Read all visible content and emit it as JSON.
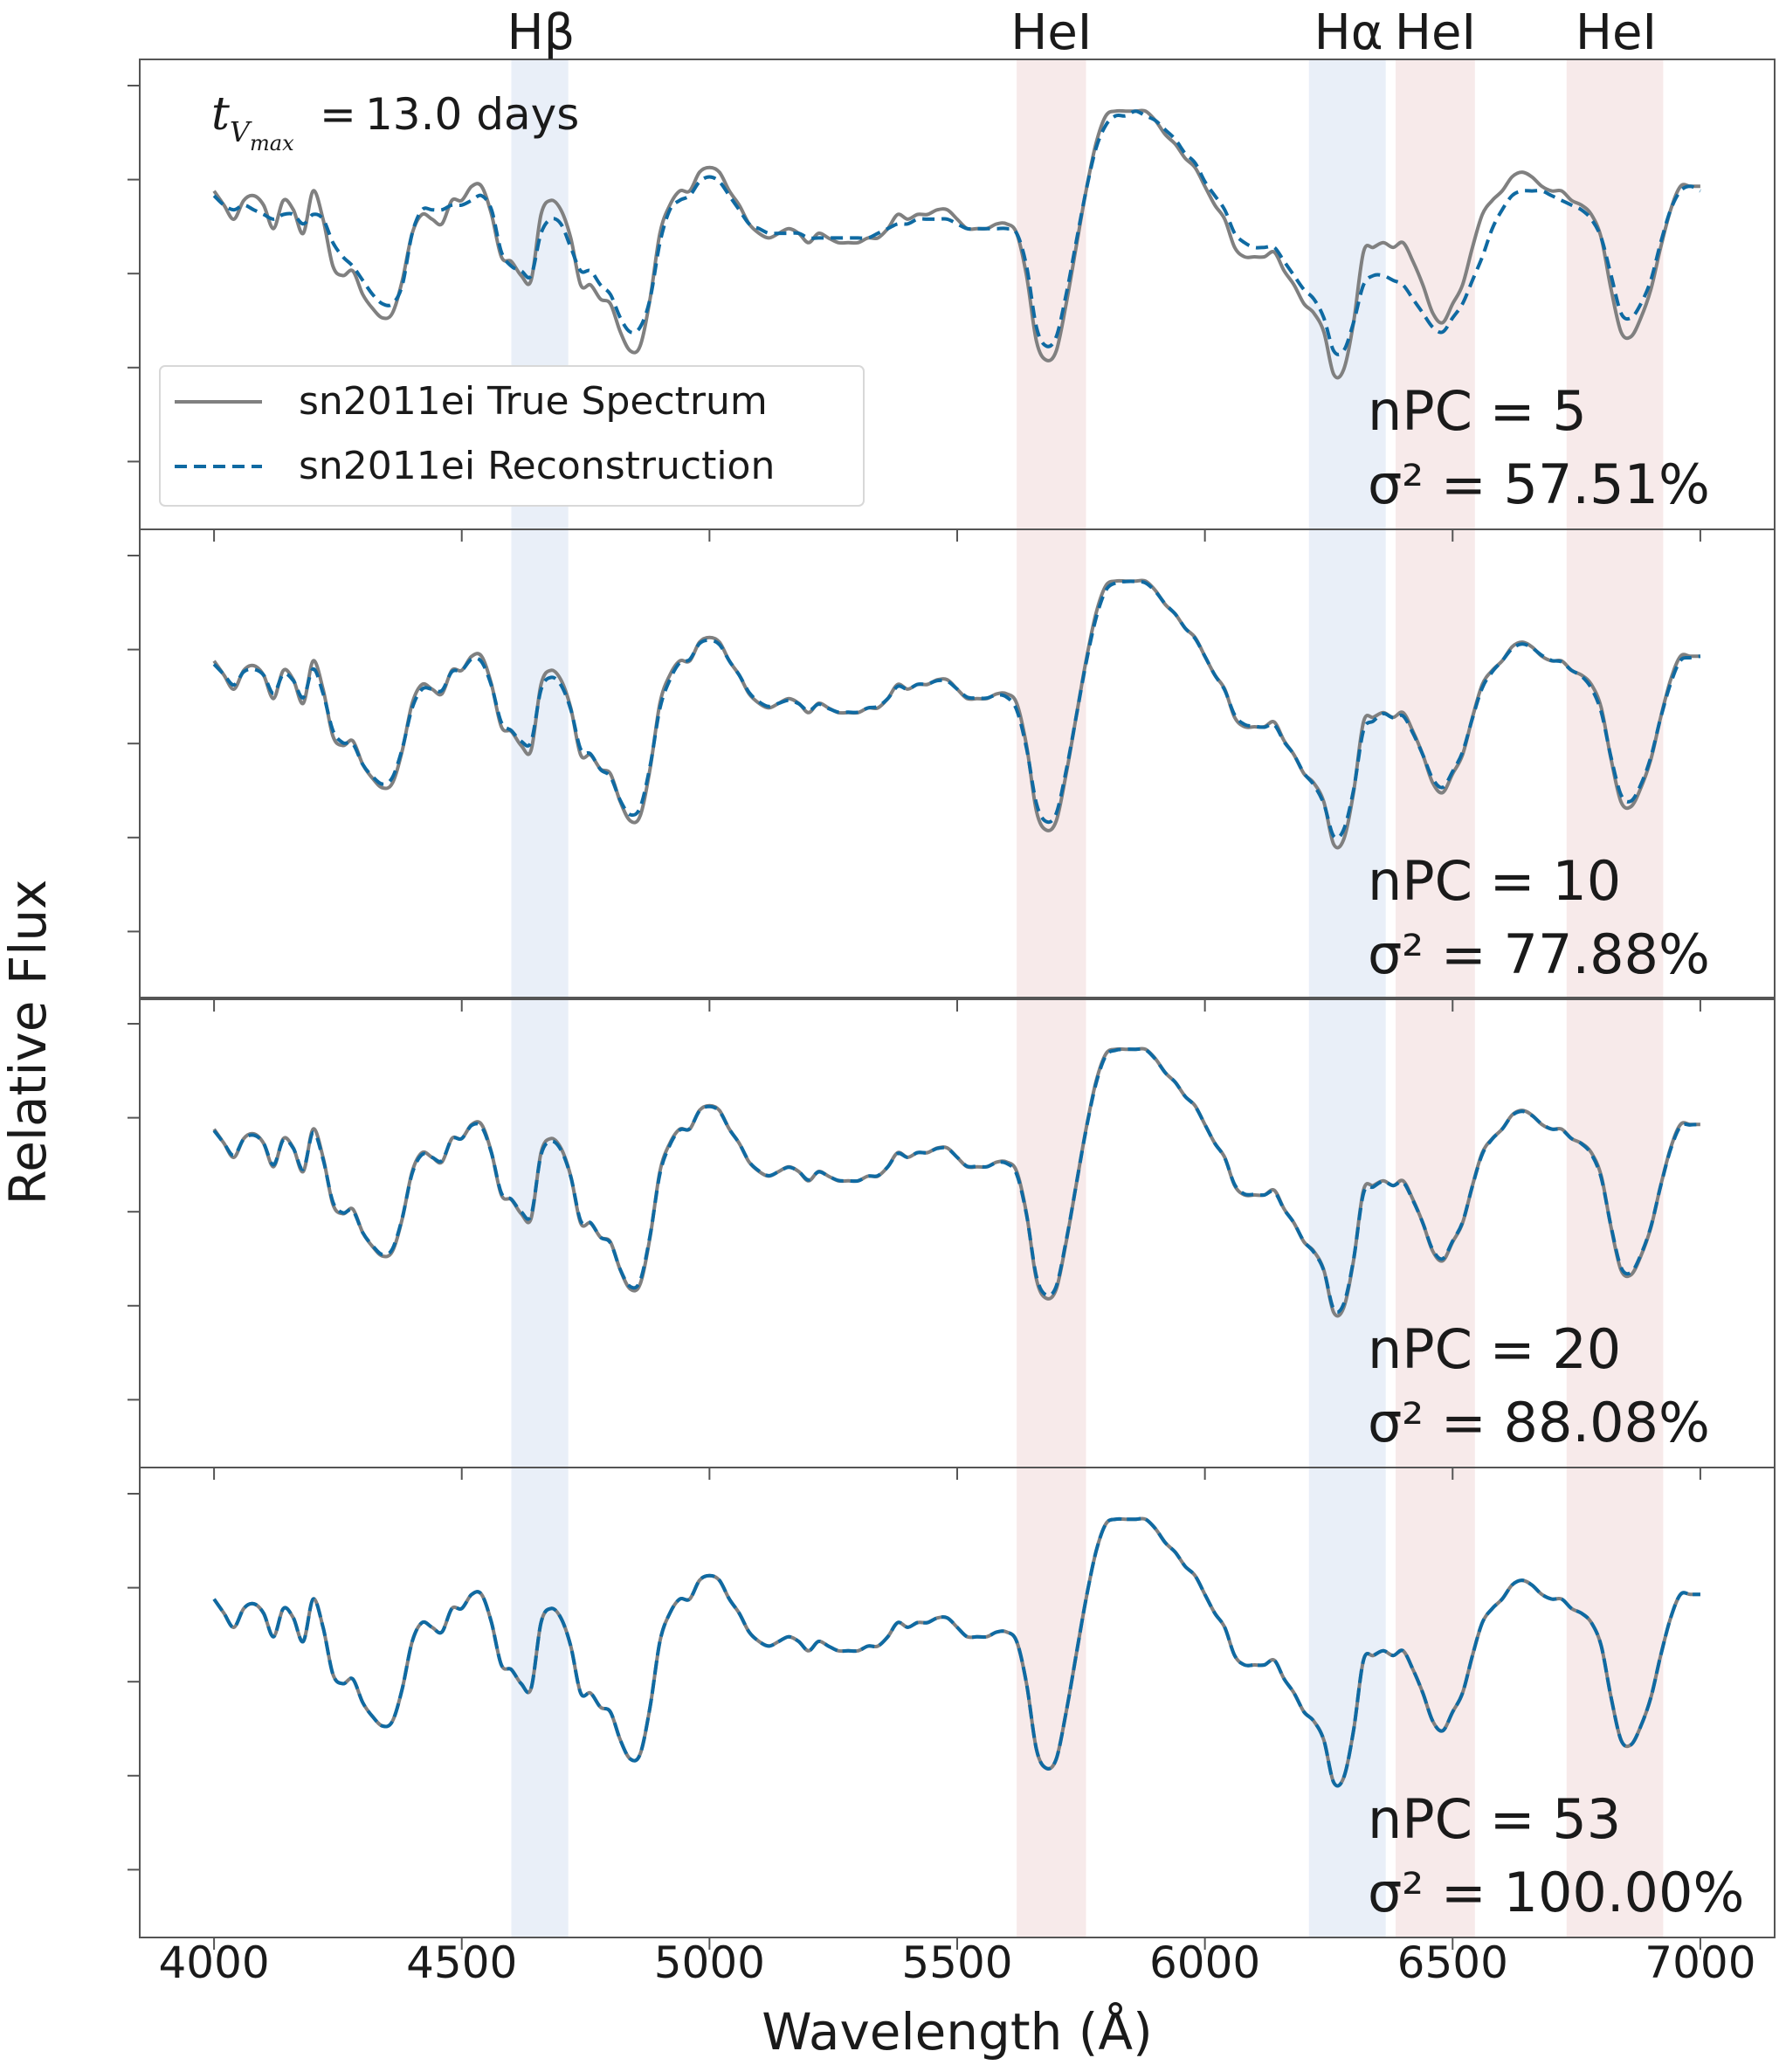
{
  "colors": {
    "true_spectrum": "#808080",
    "reconstruction": "#0f6aa2",
    "h_band": "#e9eff8",
    "he_band": "#f7eaea",
    "axis": "#555555",
    "text": "#1a1a1a"
  },
  "annotations": {
    "epoch_label": "13.0 days",
    "line_labels": [
      {
        "label": "Hβ",
        "x": 4660,
        "band": [
          4600,
          4715
        ],
        "kind": "H"
      },
      {
        "label": "HeI",
        "x": 5690,
        "band": [
          5620,
          5760
        ],
        "kind": "He"
      },
      {
        "label": "Hα",
        "x": 6290,
        "band": [
          6210,
          6365
        ],
        "kind": "H"
      },
      {
        "label": "HeI",
        "x": 6465,
        "band": [
          6385,
          6545
        ],
        "kind": "He"
      },
      {
        "label": "HeI",
        "x": 6830,
        "band": [
          6730,
          6925
        ],
        "kind": "He"
      }
    ]
  },
  "chart_data": {
    "type": "line",
    "xlabel": "Wavelength (Å)",
    "ylabel": "Relative Flux",
    "xlim": [
      3850,
      7150
    ],
    "ylim": [
      0,
      1
    ],
    "x_ticks": [
      4000,
      4500,
      5000,
      5500,
      6000,
      6500,
      7000
    ],
    "legend": {
      "placement": "upper-left of first panel",
      "entries": [
        "sn2011ei True Spectrum",
        "sn2011ei Reconstruction"
      ]
    },
    "true_spectrum": {
      "name": "sn2011ei True Spectrum",
      "x": [
        4000,
        4020,
        4040,
        4060,
        4080,
        4100,
        4120,
        4140,
        4160,
        4180,
        4200,
        4220,
        4240,
        4260,
        4280,
        4300,
        4320,
        4340,
        4360,
        4380,
        4400,
        4420,
        4440,
        4460,
        4480,
        4500,
        4520,
        4540,
        4560,
        4580,
        4600,
        4620,
        4640,
        4660,
        4680,
        4700,
        4720,
        4740,
        4760,
        4780,
        4800,
        4820,
        4840,
        4860,
        4880,
        4900,
        4920,
        4940,
        4960,
        4980,
        5000,
        5020,
        5040,
        5060,
        5080,
        5100,
        5120,
        5140,
        5160,
        5180,
        5200,
        5220,
        5240,
        5260,
        5280,
        5300,
        5320,
        5340,
        5360,
        5380,
        5400,
        5420,
        5440,
        5460,
        5480,
        5500,
        5520,
        5540,
        5560,
        5580,
        5600,
        5620,
        5640,
        5660,
        5680,
        5700,
        5720,
        5740,
        5760,
        5780,
        5800,
        5820,
        5840,
        5860,
        5880,
        5900,
        5920,
        5940,
        5960,
        5980,
        6000,
        6020,
        6040,
        6060,
        6080,
        6100,
        6120,
        6140,
        6160,
        6180,
        6200,
        6220,
        6240,
        6260,
        6280,
        6300,
        6320,
        6340,
        6360,
        6380,
        6400,
        6420,
        6440,
        6460,
        6480,
        6500,
        6520,
        6540,
        6560,
        6580,
        6600,
        6620,
        6640,
        6660,
        6680,
        6700,
        6720,
        6740,
        6760,
        6780,
        6800,
        6820,
        6840,
        6860,
        6880,
        6900,
        6920,
        6940,
        6960,
        6980,
        7000
      ],
      "y": [
        0.72,
        0.69,
        0.66,
        0.7,
        0.71,
        0.69,
        0.64,
        0.7,
        0.68,
        0.63,
        0.72,
        0.66,
        0.56,
        0.54,
        0.55,
        0.5,
        0.47,
        0.45,
        0.46,
        0.53,
        0.63,
        0.67,
        0.66,
        0.65,
        0.7,
        0.7,
        0.73,
        0.73,
        0.67,
        0.58,
        0.57,
        0.54,
        0.53,
        0.67,
        0.7,
        0.68,
        0.62,
        0.52,
        0.52,
        0.49,
        0.48,
        0.42,
        0.38,
        0.39,
        0.49,
        0.63,
        0.69,
        0.72,
        0.72,
        0.76,
        0.77,
        0.76,
        0.72,
        0.69,
        0.65,
        0.63,
        0.62,
        0.63,
        0.64,
        0.63,
        0.61,
        0.63,
        0.62,
        0.61,
        0.61,
        0.61,
        0.62,
        0.62,
        0.64,
        0.67,
        0.66,
        0.67,
        0.67,
        0.68,
        0.68,
        0.66,
        0.64,
        0.64,
        0.64,
        0.65,
        0.65,
        0.63,
        0.54,
        0.4,
        0.36,
        0.38,
        0.48,
        0.6,
        0.72,
        0.82,
        0.88,
        0.89,
        0.89,
        0.89,
        0.89,
        0.87,
        0.84,
        0.82,
        0.79,
        0.77,
        0.73,
        0.69,
        0.66,
        0.6,
        0.58,
        0.58,
        0.58,
        0.59,
        0.55,
        0.52,
        0.48,
        0.46,
        0.42,
        0.33,
        0.34,
        0.44,
        0.59,
        0.6,
        0.61,
        0.6,
        0.61,
        0.57,
        0.52,
        0.46,
        0.44,
        0.48,
        0.52,
        0.6,
        0.67,
        0.7,
        0.72,
        0.75,
        0.76,
        0.75,
        0.73,
        0.72,
        0.72,
        0.7,
        0.69,
        0.67,
        0.62,
        0.51,
        0.42,
        0.41,
        0.45,
        0.51,
        0.6,
        0.68,
        0.73,
        0.73,
        0.73
      ]
    },
    "panels": [
      {
        "npc_label": "nPC = 5",
        "variance_label": "σ² = 57.51%",
        "reconstruction_anchors": {
          "x": [
            4000,
            4020,
            4040,
            4060,
            4080,
            4100,
            4120,
            4140,
            4160,
            4180,
            4200,
            4220,
            4240,
            4260,
            4280,
            4300,
            4320,
            4340,
            4360,
            4380,
            4400,
            4420,
            4440,
            4460,
            4480,
            4500,
            4520,
            4540,
            4560,
            4580,
            4600,
            4620,
            4640,
            4660,
            4680,
            4700,
            4720,
            4740,
            4760,
            4780,
            4800,
            4820,
            4840,
            4860,
            4880,
            4900,
            4920,
            4940,
            4960,
            4980,
            5000,
            5020,
            5040,
            5060,
            5080,
            5100,
            5120,
            5140,
            5160,
            5180,
            5200,
            5220,
            5240,
            5260,
            5280,
            5300,
            5320,
            5340,
            5360,
            5380,
            5400,
            5420,
            5440,
            5460,
            5480,
            5500,
            5520,
            5540,
            5560,
            5580,
            5600,
            5620,
            5640,
            5660,
            5680,
            5700,
            5720,
            5740,
            5760,
            5780,
            5800,
            5820,
            5840,
            5860,
            5880,
            5900,
            5920,
            5940,
            5960,
            5980,
            6000,
            6020,
            6040,
            6060,
            6080,
            6100,
            6120,
            6140,
            6160,
            6180,
            6200,
            6220,
            6240,
            6260,
            6280,
            6300,
            6320,
            6340,
            6360,
            6380,
            6400,
            6420,
            6440,
            6460,
            6480,
            6500,
            6520,
            6540,
            6560,
            6580,
            6600,
            6620,
            6640,
            6660,
            6680,
            6700,
            6720,
            6740,
            6760,
            6780,
            6800,
            6820,
            6840,
            6860,
            6880,
            6900,
            6920,
            6940,
            6960,
            6980,
            7000
          ],
          "y": [
            0.71,
            0.69,
            0.68,
            0.69,
            0.68,
            0.67,
            0.66,
            0.67,
            0.67,
            0.65,
            0.67,
            0.66,
            0.61,
            0.58,
            0.56,
            0.53,
            0.5,
            0.48,
            0.48,
            0.52,
            0.63,
            0.68,
            0.68,
            0.68,
            0.69,
            0.69,
            0.7,
            0.71,
            0.68,
            0.59,
            0.56,
            0.55,
            0.54,
            0.63,
            0.66,
            0.65,
            0.6,
            0.55,
            0.55,
            0.52,
            0.5,
            0.45,
            0.42,
            0.43,
            0.49,
            0.61,
            0.68,
            0.7,
            0.71,
            0.74,
            0.75,
            0.74,
            0.71,
            0.68,
            0.65,
            0.64,
            0.63,
            0.63,
            0.63,
            0.63,
            0.62,
            0.62,
            0.62,
            0.62,
            0.62,
            0.62,
            0.62,
            0.63,
            0.64,
            0.65,
            0.65,
            0.66,
            0.66,
            0.66,
            0.66,
            0.65,
            0.64,
            0.64,
            0.64,
            0.64,
            0.64,
            0.63,
            0.56,
            0.43,
            0.39,
            0.41,
            0.5,
            0.61,
            0.72,
            0.81,
            0.86,
            0.88,
            0.88,
            0.89,
            0.88,
            0.87,
            0.85,
            0.83,
            0.8,
            0.78,
            0.74,
            0.71,
            0.68,
            0.63,
            0.61,
            0.6,
            0.6,
            0.6,
            0.57,
            0.54,
            0.51,
            0.49,
            0.45,
            0.38,
            0.38,
            0.44,
            0.52,
            0.54,
            0.54,
            0.53,
            0.52,
            0.49,
            0.46,
            0.43,
            0.42,
            0.45,
            0.48,
            0.53,
            0.58,
            0.64,
            0.68,
            0.71,
            0.72,
            0.72,
            0.72,
            0.71,
            0.7,
            0.69,
            0.68,
            0.66,
            0.62,
            0.54,
            0.46,
            0.45,
            0.48,
            0.53,
            0.61,
            0.68,
            0.72,
            0.73,
            0.72
          ]
        }
      },
      {
        "npc_label": "nPC = 10",
        "variance_label": "σ² = 77.88%"
      },
      {
        "npc_label": "nPC = 20",
        "variance_label": "σ² = 88.08%"
      },
      {
        "npc_label": "nPC = 53",
        "variance_label": "σ² = 100.00%"
      }
    ]
  }
}
